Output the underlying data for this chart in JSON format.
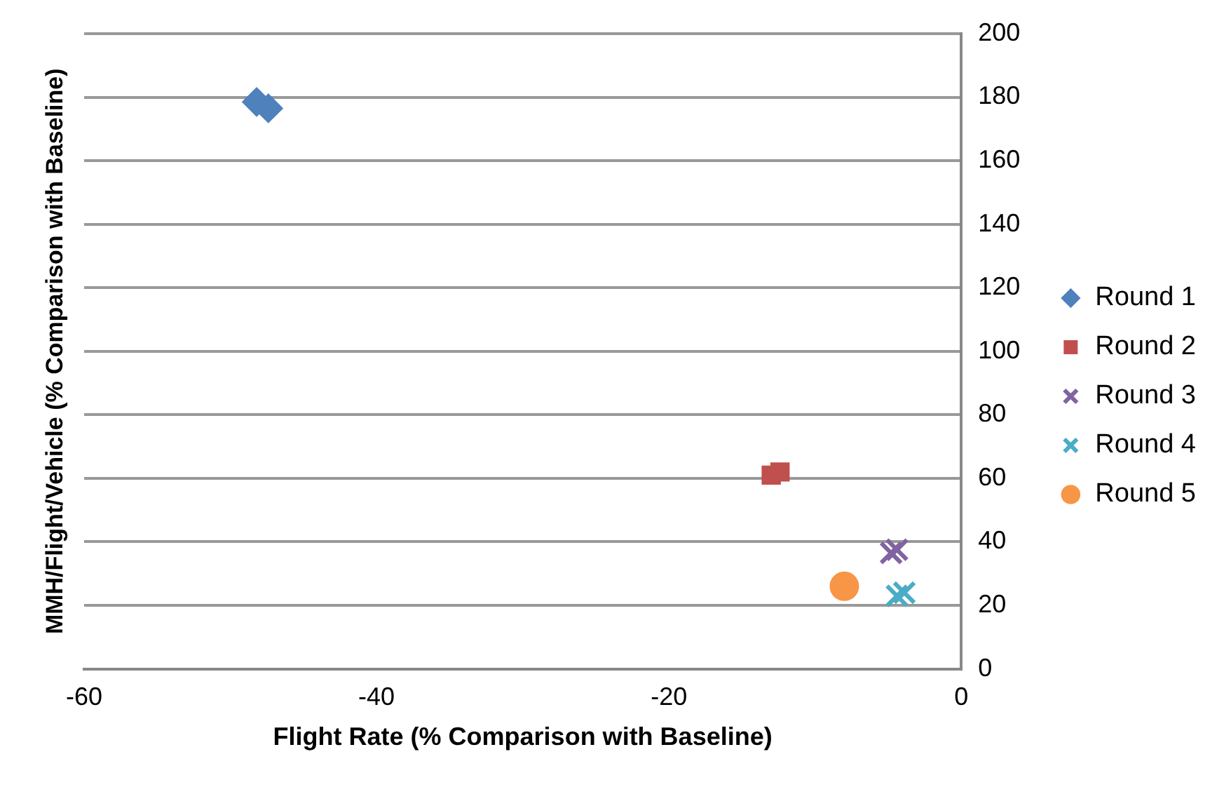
{
  "chart_data": {
    "type": "scatter",
    "xlabel": "Flight Rate (% Comparison with Baseline)",
    "ylabel": "MMH/Flight/Vehicle (% Comparison with Baseline)",
    "xlim": [
      -60,
      0
    ],
    "xticks": [
      -60,
      -40,
      -20,
      0
    ],
    "ylim": [
      0,
      200
    ],
    "yticks": [
      0,
      20,
      40,
      60,
      80,
      100,
      120,
      140,
      160,
      180,
      200
    ],
    "grid": "y",
    "legend": "right",
    "series": [
      {
        "name": "Round 1",
        "color": "#4f81bd",
        "marker": "diamond",
        "x": [
          -48.2,
          -47.4
        ],
        "values": [
          178.5,
          176.5
        ]
      },
      {
        "name": "Round 2",
        "color": "#c0504d",
        "marker": "square",
        "x": [
          -13,
          -12.4
        ],
        "values": [
          61,
          62
        ]
      },
      {
        "name": "Round 3",
        "color": "#8064a2",
        "marker": "cross",
        "x": [
          -4.8,
          -4.4
        ],
        "values": [
          36.5,
          37.5
        ]
      },
      {
        "name": "Round 4",
        "color": "#4bacc6",
        "marker": "cross",
        "x": [
          -4.4,
          -3.9
        ],
        "values": [
          23,
          24
        ]
      },
      {
        "name": "Round 5",
        "color": "#f79646",
        "marker": "circle",
        "x": [
          -8
        ],
        "values": [
          26
        ]
      }
    ]
  }
}
